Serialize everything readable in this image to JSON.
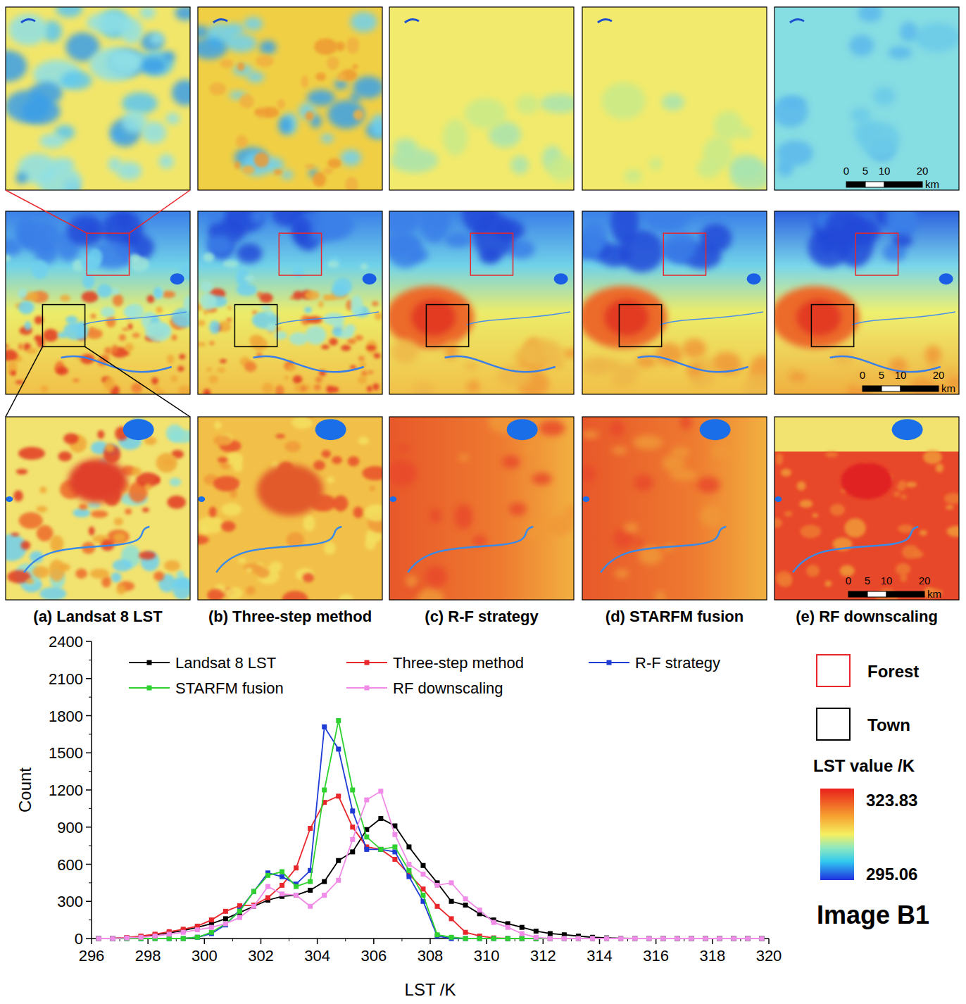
{
  "chart_data": {
    "type": "line",
    "x": [
      296.25,
      296.75,
      297.25,
      297.75,
      298.25,
      298.75,
      299.25,
      299.75,
      300.25,
      300.75,
      301.25,
      301.75,
      302.25,
      302.75,
      303.25,
      303.75,
      304.25,
      304.75,
      305.25,
      305.75,
      306.25,
      306.75,
      307.25,
      307.75,
      308.25,
      308.75,
      309.25,
      309.75,
      310.25,
      310.75,
      311.25,
      311.75,
      312.25,
      312.75,
      313.25,
      313.75,
      314.25,
      314.75,
      315.25,
      315.75,
      316.25,
      316.75,
      317.25,
      317.75,
      318.25,
      318.75,
      319.25,
      319.75
    ],
    "xlim": [
      296,
      320
    ],
    "xticks": [
      296,
      298,
      300,
      302,
      304,
      306,
      308,
      310,
      312,
      314,
      316,
      318,
      320
    ],
    "ylim": [
      0,
      2400
    ],
    "yticks": [
      0,
      300,
      600,
      900,
      1200,
      1500,
      1800,
      2100,
      2400
    ],
    "x_label": "LST /K",
    "y_label": "Count",
    "legend": "top-left",
    "marker": "square",
    "series": [
      {
        "name": "Landsat 8 LST",
        "color": "#000000",
        "values": [
          0,
          0,
          5,
          15,
          30,
          45,
          65,
          90,
          120,
          160,
          210,
          260,
          310,
          340,
          350,
          390,
          460,
          630,
          700,
          880,
          970,
          910,
          740,
          590,
          450,
          300,
          270,
          200,
          150,
          120,
          90,
          60,
          40,
          30,
          20,
          10,
          5,
          2,
          0,
          0,
          0,
          0,
          0,
          0,
          0,
          0,
          0,
          0
        ]
      },
      {
        "name": "Three-step method",
        "color": "#e8262b",
        "values": [
          0,
          2,
          8,
          20,
          35,
          55,
          75,
          100,
          150,
          220,
          265,
          270,
          330,
          430,
          570,
          890,
          1100,
          1150,
          900,
          740,
          720,
          640,
          520,
          400,
          260,
          160,
          50,
          20,
          5,
          0,
          0,
          0,
          0,
          0,
          0,
          0,
          0,
          0,
          0,
          0,
          0,
          0,
          0,
          0,
          0,
          0,
          0,
          0
        ]
      },
      {
        "name": "R-F strategy",
        "color": "#1f3bd6",
        "values": [
          0,
          0,
          0,
          0,
          0,
          0,
          0,
          10,
          40,
          110,
          230,
          380,
          530,
          500,
          440,
          550,
          1710,
          1530,
          1030,
          720,
          720,
          700,
          500,
          300,
          20,
          0,
          0,
          0,
          0,
          0,
          0,
          0,
          0,
          0,
          0,
          0,
          0,
          0,
          0,
          0,
          0,
          0,
          0,
          0,
          0,
          0,
          0,
          0
        ]
      },
      {
        "name": "STARFM fusion",
        "color": "#2fd12f",
        "values": [
          0,
          0,
          0,
          0,
          0,
          0,
          0,
          10,
          50,
          120,
          220,
          380,
          510,
          540,
          420,
          460,
          1200,
          1760,
          1200,
          820,
          720,
          740,
          550,
          350,
          30,
          10,
          0,
          0,
          0,
          0,
          0,
          0,
          0,
          0,
          0,
          0,
          0,
          0,
          0,
          0,
          0,
          0,
          0,
          0,
          0,
          0,
          0,
          0
        ]
      },
      {
        "name": "RF downscaling",
        "color": "#f08ce8",
        "values": [
          0,
          0,
          5,
          10,
          20,
          35,
          50,
          70,
          90,
          120,
          170,
          260,
          420,
          360,
          350,
          260,
          350,
          470,
          800,
          1120,
          1190,
          840,
          600,
          520,
          430,
          450,
          320,
          230,
          130,
          90,
          40,
          10,
          0,
          0,
          0,
          0,
          0,
          0,
          0,
          0,
          0,
          0,
          0,
          0,
          0,
          0,
          0,
          0
        ]
      }
    ]
  },
  "panels": [
    "(a) Landsat 8 LST",
    "(b) Three-step method",
    "(c) R-F strategy",
    "(d) STARFM fusion",
    "(e) RF downscaling"
  ],
  "scale_bar": {
    "ticks": [
      0,
      5,
      10,
      20
    ],
    "unit": "km"
  },
  "region_legend": [
    {
      "label": "Forest",
      "color": "#e8262b"
    },
    {
      "label": "Town",
      "color": "#000000"
    }
  ],
  "colorbar": {
    "title": "LST value /K",
    "max": 323.83,
    "min": 295.06
  },
  "image_label": "Image B1"
}
